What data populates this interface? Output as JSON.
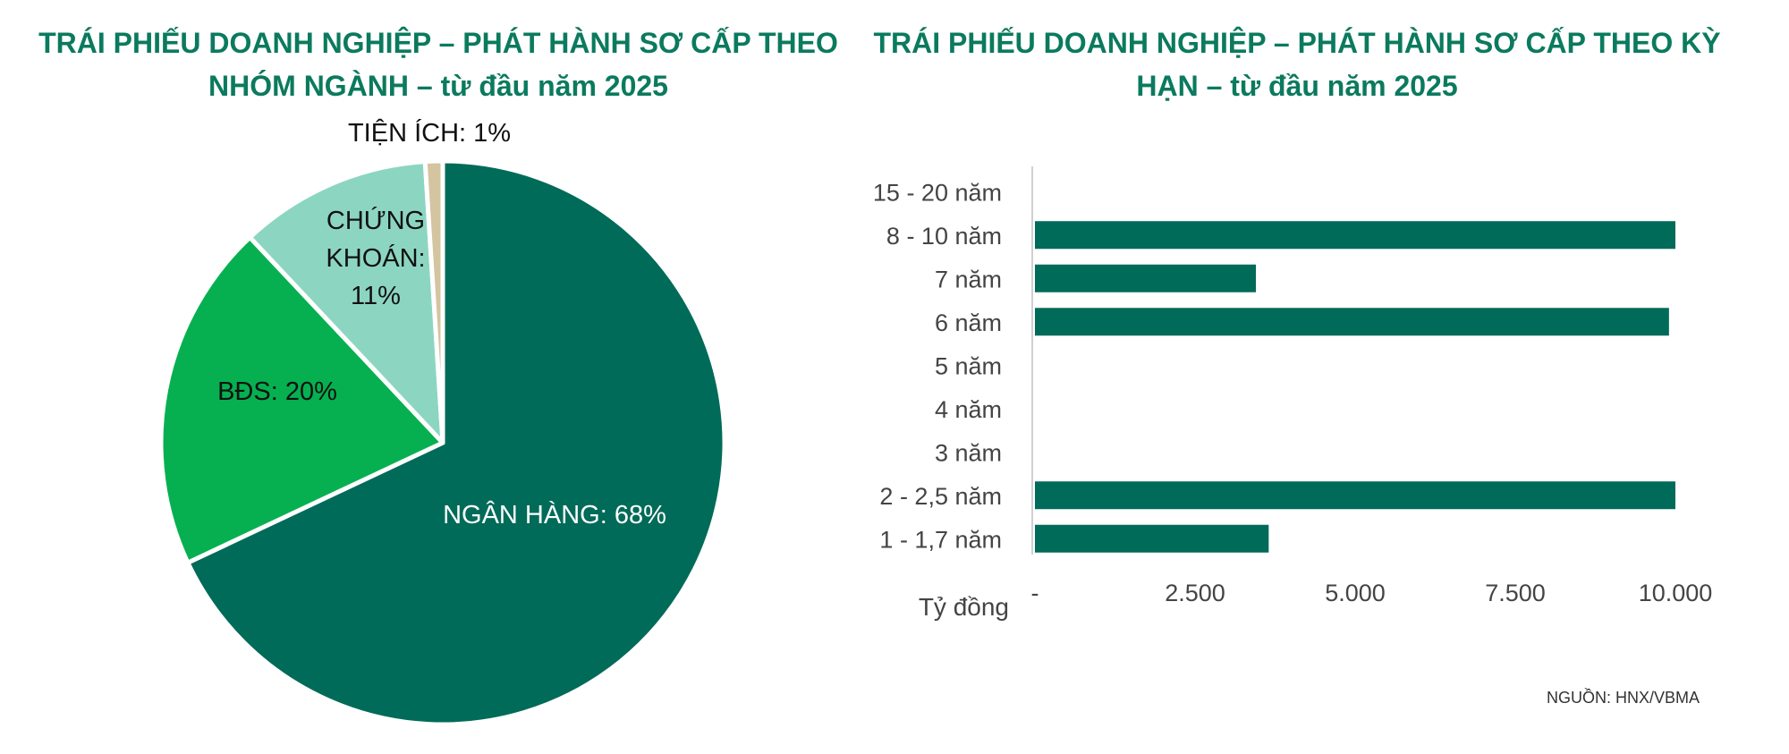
{
  "chart_data": [
    {
      "type": "pie",
      "title": "TRÁI PHIẾU DOANH NGHIỆP – PHÁT HÀNH SƠ CẤP THEO NHÓM NGÀNH –  từ đầu năm 2025",
      "slices": [
        {
          "label": "NGÂN HÀNG: 68%",
          "value": 68,
          "color": "#006b58"
        },
        {
          "label": "BĐS: 20%",
          "value": 20,
          "color": "#06b050"
        },
        {
          "label": "CHỨNG KHOÁN: 11%",
          "value": 11,
          "color": "#8cd6c1"
        },
        {
          "label": "TIỆN ÍCH: 1%",
          "value": 1,
          "color": "#d4c4a0"
        }
      ]
    },
    {
      "type": "bar",
      "orientation": "horizontal",
      "title": "TRÁI PHIẾU DOANH NGHIỆP – PHÁT HÀNH SƠ CẤP THEO KỲ HẠN – từ đầu năm 2025",
      "categories": [
        "15 - 20 năm",
        "8 - 10 năm",
        "7 năm",
        "6 năm",
        "5 năm",
        "4 năm",
        "3 năm",
        "2 - 2,5 năm",
        "1 - 1,7 năm"
      ],
      "values": [
        0,
        10000,
        3450,
        9900,
        0,
        0,
        0,
        10000,
        3650
      ],
      "xlabel": "Tỷ đồng",
      "xlim": [
        0,
        10000
      ],
      "xticks": [
        "-",
        "2.500",
        "5.000",
        "7.500",
        "10.000"
      ],
      "xtick_values": [
        0,
        2500,
        5000,
        7500,
        10000
      ],
      "grid": false,
      "bar_color": "#006b58"
    }
  ],
  "source": "NGUỒN: HNX/VBMA"
}
